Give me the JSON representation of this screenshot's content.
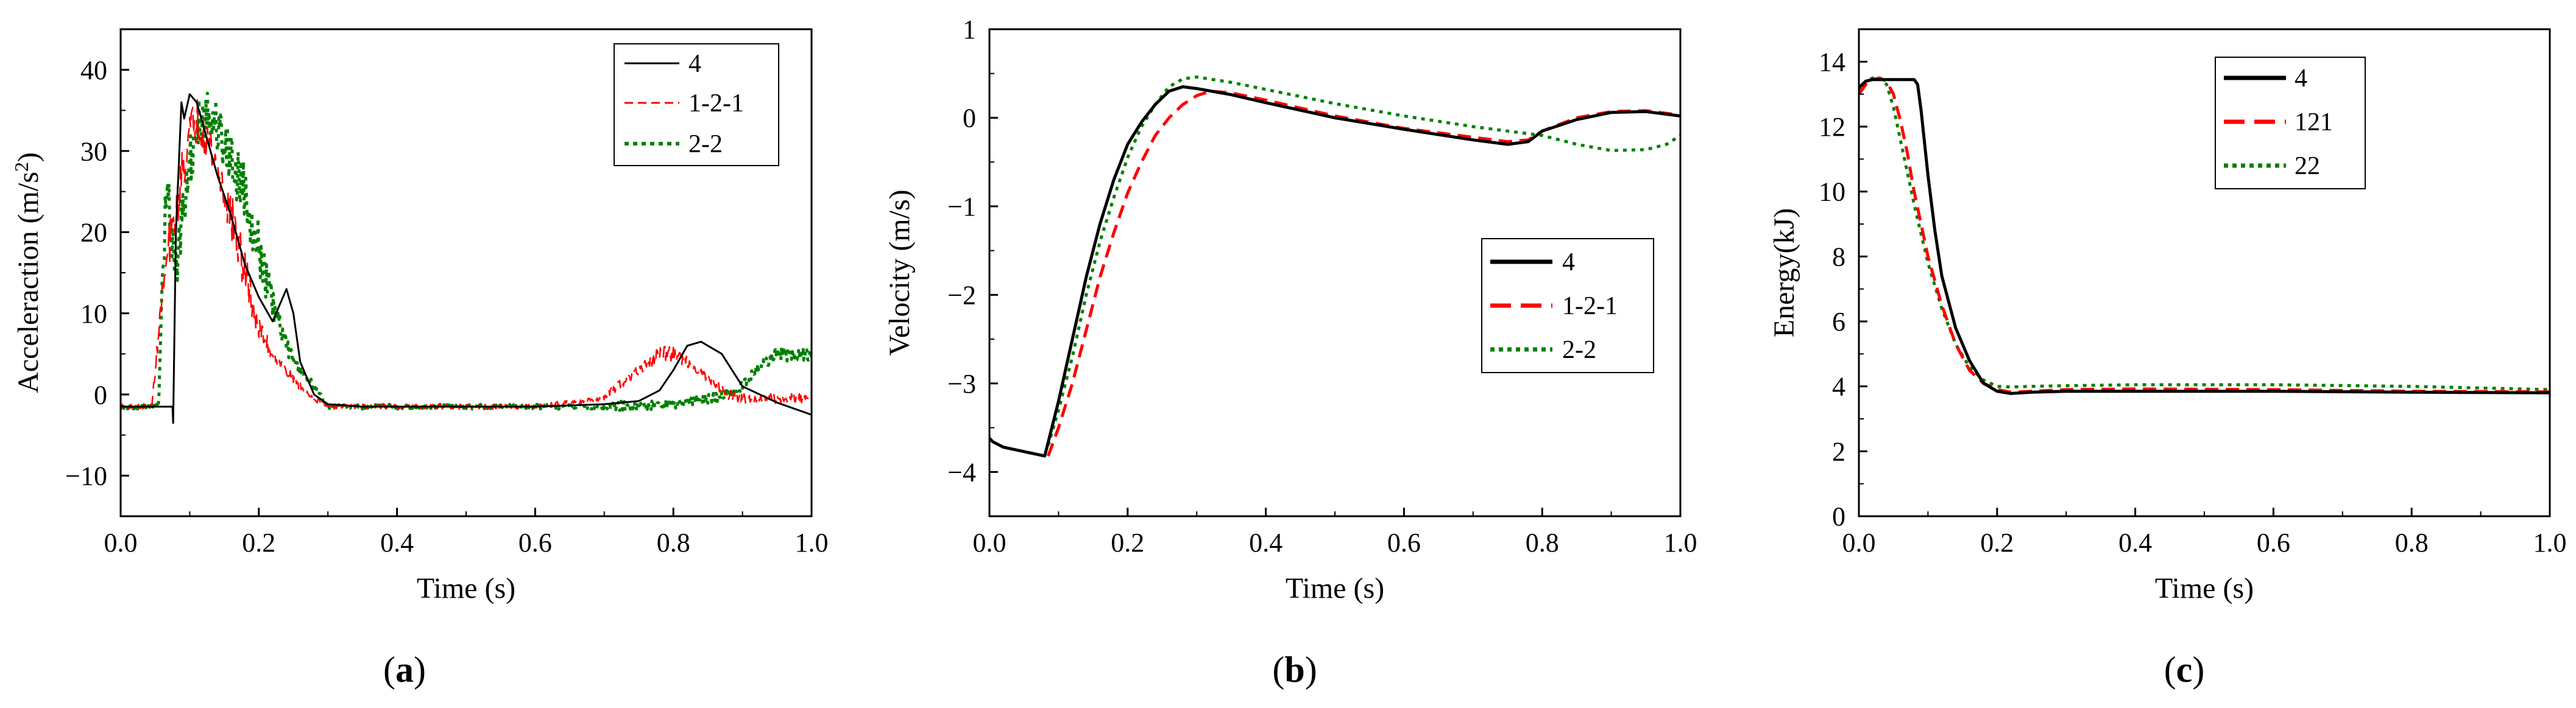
{
  "chart_data": [
    {
      "type": "line",
      "caption": "a",
      "xlabel": "Time (s)",
      "ylabel": "Acceleraction (m/s",
      "ylabel_sup": "2",
      "ylabel_close": ")",
      "xlim": [
        0,
        1.0
      ],
      "ylim": [
        -15,
        45
      ],
      "xticks": [
        0.0,
        0.2,
        0.4,
        0.6,
        0.8,
        1.0
      ],
      "xtick_labels": [
        "0.0",
        "0.2",
        "0.4",
        "0.6",
        "0.8",
        "1.0"
      ],
      "yticks": [
        -10,
        0,
        10,
        20,
        30,
        40
      ],
      "ytick_labels": [
        "−10",
        "0",
        "10",
        "20",
        "30",
        "40"
      ],
      "legend": {
        "entries": [
          "4",
          "1-2-1",
          "2-2"
        ],
        "position": "top-right"
      },
      "series": [
        {
          "name": "4",
          "color": "#000000",
          "dash": "solid",
          "noise": 0,
          "x": [
            0,
            0.075,
            0.076,
            0.08,
            0.088,
            0.092,
            0.1,
            0.11,
            0.12,
            0.14,
            0.16,
            0.18,
            0.2,
            0.22,
            0.23,
            0.24,
            0.25,
            0.26,
            0.28,
            0.3,
            0.35,
            0.4,
            0.5,
            0.6,
            0.7,
            0.75,
            0.78,
            0.8,
            0.82,
            0.84,
            0.87,
            0.9,
            0.95,
            1.0
          ],
          "y": [
            -1.5,
            -1.5,
            -3.5,
            20,
            36,
            34,
            37,
            36,
            33,
            27,
            22,
            16,
            12,
            9,
            11,
            13,
            10,
            4,
            0,
            -1.2,
            -1.5,
            -1.5,
            -1.5,
            -1.5,
            -1.2,
            -0.8,
            0.5,
            3,
            6,
            6.5,
            5,
            1,
            -1,
            -2.5
          ]
        },
        {
          "name": "1-2-1",
          "color": "#ff0000",
          "dash": "dashed",
          "noise": 3,
          "x": [
            0,
            0.045,
            0.06,
            0.07,
            0.08,
            0.09,
            0.1,
            0.11,
            0.12,
            0.14,
            0.16,
            0.18,
            0.2,
            0.22,
            0.24,
            0.26,
            0.28,
            0.3,
            0.4,
            0.5,
            0.6,
            0.7,
            0.72,
            0.75,
            0.78,
            0.8,
            0.82,
            0.85,
            0.88,
            0.9,
            0.92,
            0.95,
            1.0
          ],
          "y": [
            -1.5,
            -1.5,
            12,
            18,
            22,
            28,
            32,
            34,
            33,
            28,
            22,
            15,
            8,
            5,
            3,
            1,
            -0.5,
            -1.5,
            -1.5,
            -1.5,
            -1.5,
            -0.5,
            1,
            3,
            5,
            5,
            4,
            2,
            0,
            -0.5,
            -0.5,
            -0.5,
            -0.5
          ]
        },
        {
          "name": "2-2",
          "color": "#008000",
          "dash": "dotted",
          "noise": 3.5,
          "x": [
            0,
            0.055,
            0.06,
            0.065,
            0.07,
            0.075,
            0.08,
            0.09,
            0.1,
            0.11,
            0.12,
            0.13,
            0.14,
            0.16,
            0.18,
            0.2,
            0.22,
            0.24,
            0.26,
            0.28,
            0.3,
            0.4,
            0.5,
            0.6,
            0.7,
            0.8,
            0.85,
            0.88,
            0.9,
            0.92,
            0.95,
            0.98,
            1.0
          ],
          "y": [
            -1.5,
            -1.5,
            14,
            22,
            24,
            20,
            15,
            22,
            28,
            33,
            35,
            34,
            33,
            29,
            25,
            18,
            11,
            6,
            3,
            1,
            -1.5,
            -1.5,
            -1.5,
            -1.5,
            -1.5,
            -1.2,
            -0.5,
            0,
            1,
            3,
            5,
            5,
            5
          ]
        }
      ]
    },
    {
      "type": "line",
      "caption": "b",
      "xlabel": "Time (s)",
      "ylabel": "Velocity (m/s)",
      "xlim": [
        0,
        1.0
      ],
      "ylim": [
        -4.5,
        1
      ],
      "xticks": [
        0.0,
        0.2,
        0.4,
        0.6,
        0.8,
        1.0
      ],
      "xtick_labels": [
        "0.0",
        "0.2",
        "0.4",
        "0.6",
        "0.8",
        "1.0"
      ],
      "yticks": [
        -4,
        -3,
        -2,
        -1,
        0,
        1
      ],
      "ytick_labels": [
        "−4",
        "−3",
        "−2",
        "−1",
        "0",
        "1"
      ],
      "legend": {
        "entries": [
          "4",
          "1-2-1",
          "2-2"
        ],
        "position": "center-right"
      },
      "series": [
        {
          "name": "4",
          "color": "#000000",
          "dash": "solid",
          "noise": 0,
          "x": [
            0,
            0.005,
            0.02,
            0.05,
            0.08,
            0.1,
            0.12,
            0.14,
            0.16,
            0.18,
            0.2,
            0.22,
            0.24,
            0.26,
            0.28,
            0.3,
            0.35,
            0.4,
            0.5,
            0.6,
            0.7,
            0.75,
            0.78,
            0.8,
            0.85,
            0.9,
            0.95,
            1.0
          ],
          "y": [
            -3.62,
            -3.66,
            -3.72,
            -3.77,
            -3.82,
            -3.2,
            -2.5,
            -1.8,
            -1.2,
            -0.7,
            -0.3,
            -0.05,
            0.15,
            0.3,
            0.35,
            0.33,
            0.26,
            0.17,
            0.0,
            -0.13,
            -0.25,
            -0.3,
            -0.27,
            -0.15,
            -0.02,
            0.06,
            0.07,
            0.02
          ]
        },
        {
          "name": "1-2-1",
          "color": "#ff0000",
          "dash": "dashed",
          "noise": 0,
          "x": [
            0.085,
            0.1,
            0.12,
            0.14,
            0.16,
            0.18,
            0.2,
            0.22,
            0.24,
            0.26,
            0.28,
            0.3,
            0.32,
            0.35,
            0.4,
            0.5,
            0.6,
            0.7,
            0.75,
            0.78,
            0.8,
            0.85,
            0.9,
            0.95,
            1.0
          ],
          "y": [
            -3.82,
            -3.5,
            -3.0,
            -2.4,
            -1.8,
            -1.3,
            -0.85,
            -0.5,
            -0.2,
            0.0,
            0.15,
            0.25,
            0.3,
            0.28,
            0.2,
            0.02,
            -0.12,
            -0.22,
            -0.27,
            -0.25,
            -0.15,
            0.0,
            0.07,
            0.08,
            0.03
          ]
        },
        {
          "name": "2-2",
          "color": "#008000",
          "dash": "dotted",
          "noise": 0,
          "x": [
            0.085,
            0.1,
            0.12,
            0.14,
            0.16,
            0.18,
            0.2,
            0.22,
            0.24,
            0.26,
            0.28,
            0.3,
            0.35,
            0.4,
            0.5,
            0.6,
            0.7,
            0.75,
            0.8,
            0.85,
            0.9,
            0.95,
            0.98,
            1.0
          ],
          "y": [
            -3.7,
            -3.3,
            -2.7,
            -2.0,
            -1.4,
            -0.9,
            -0.45,
            -0.1,
            0.15,
            0.35,
            0.44,
            0.46,
            0.4,
            0.32,
            0.16,
            0.02,
            -0.1,
            -0.15,
            -0.2,
            -0.3,
            -0.37,
            -0.36,
            -0.3,
            -0.2
          ]
        }
      ]
    },
    {
      "type": "line",
      "caption": "c",
      "xlabel": "Time (s)",
      "ylabel": "Energy(kJ)",
      "xlim": [
        0,
        1.0
      ],
      "ylim": [
        0,
        15
      ],
      "xticks": [
        0.0,
        0.2,
        0.4,
        0.6,
        0.8,
        1.0
      ],
      "xtick_labels": [
        "0.0",
        "0.2",
        "0.4",
        "0.6",
        "0.8",
        "1.0"
      ],
      "yticks": [
        0,
        2,
        4,
        6,
        8,
        10,
        12,
        14
      ],
      "ytick_labels": [
        "0",
        "2",
        "4",
        "6",
        "8",
        "10",
        "12",
        "14"
      ],
      "legend": {
        "entries": [
          "4",
          "121",
          "22"
        ],
        "position": "top-left"
      },
      "series": [
        {
          "name": "4",
          "color": "#000000",
          "dash": "solid",
          "noise": 0,
          "x": [
            0,
            0.01,
            0.02,
            0.08,
            0.085,
            0.09,
            0.1,
            0.11,
            0.12,
            0.14,
            0.16,
            0.18,
            0.2,
            0.22,
            0.25,
            0.3,
            0.4,
            0.6,
            0.8,
            1.0
          ],
          "y": [
            13.2,
            13.4,
            13.45,
            13.45,
            13.3,
            12.5,
            10.5,
            8.8,
            7.4,
            5.8,
            4.8,
            4.1,
            3.85,
            3.78,
            3.82,
            3.85,
            3.85,
            3.85,
            3.82,
            3.8
          ]
        },
        {
          "name": "121",
          "color": "#ff0000",
          "dash": "dashed",
          "noise": 0,
          "x": [
            0,
            0.01,
            0.02,
            0.03,
            0.04,
            0.05,
            0.06,
            0.07,
            0.08,
            0.1,
            0.12,
            0.14,
            0.16,
            0.18,
            0.2,
            0.22,
            0.25,
            0.3,
            0.4,
            0.6,
            0.8,
            1.0
          ],
          "y": [
            13.0,
            13.3,
            13.45,
            13.5,
            13.4,
            13.0,
            12.2,
            11.2,
            10.0,
            8.0,
            6.5,
            5.3,
            4.5,
            4.1,
            3.9,
            3.82,
            3.85,
            3.9,
            3.92,
            3.9,
            3.85,
            3.83
          ]
        },
        {
          "name": "22",
          "color": "#008000",
          "dash": "dotted",
          "noise": 0,
          "x": [
            0,
            0.01,
            0.02,
            0.03,
            0.04,
            0.05,
            0.06,
            0.07,
            0.08,
            0.1,
            0.12,
            0.14,
            0.16,
            0.18,
            0.2,
            0.22,
            0.25,
            0.3,
            0.4,
            0.6,
            0.8,
            1.0
          ],
          "y": [
            13.1,
            13.4,
            13.5,
            13.5,
            13.3,
            12.6,
            11.6,
            10.6,
            9.6,
            7.8,
            6.4,
            5.3,
            4.6,
            4.2,
            4.0,
            3.98,
            4.0,
            4.02,
            4.05,
            4.05,
            4.0,
            3.9
          ]
        }
      ]
    }
  ]
}
